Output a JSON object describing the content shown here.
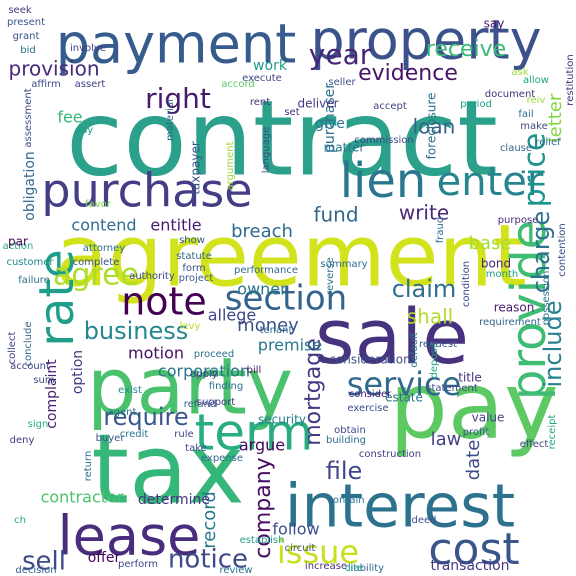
{
  "words": [
    {
      "text": "contract",
      "color": "#2ba08a"
    },
    {
      "text": "agreement",
      "color": "#d2e21b"
    },
    {
      "text": "tax",
      "color": "#35b779"
    },
    {
      "text": "pay",
      "color": "#5dc963"
    },
    {
      "text": "party",
      "color": "#4ac16d"
    },
    {
      "text": "sale",
      "color": "#46327e"
    },
    {
      "text": "interest",
      "color": "#2c728e"
    },
    {
      "text": "payment",
      "color": "#365c8d"
    },
    {
      "text": "property",
      "color": "#3b528b"
    },
    {
      "text": "purchase",
      "color": "#433e85"
    },
    {
      "text": "lease",
      "color": "#472d7b"
    },
    {
      "text": "term",
      "color": "#27ad81"
    },
    {
      "text": "lien",
      "color": "#2a768e"
    },
    {
      "text": "enter",
      "color": "#25848e"
    },
    {
      "text": "provide",
      "color": "#3fbc73"
    },
    {
      "text": "cost",
      "color": "#39568c"
    },
    {
      "text": "rate",
      "color": "#1f9e89"
    },
    {
      "text": "note",
      "color": "#440154"
    },
    {
      "text": "section",
      "color": "#33638d"
    },
    {
      "text": "service",
      "color": "#31688e"
    },
    {
      "text": "issue",
      "color": "#c8e020"
    },
    {
      "text": "agree",
      "color": "#addc30"
    },
    {
      "text": "right",
      "color": "#481a6c"
    },
    {
      "text": "year",
      "color": "#482576"
    },
    {
      "text": "price",
      "color": "#1f948c"
    },
    {
      "text": "sell",
      "color": "#3e4989"
    },
    {
      "text": "notice",
      "color": "#3e4a89"
    },
    {
      "text": "business",
      "color": "#24878e"
    },
    {
      "text": "require",
      "color": "#3a548c"
    },
    {
      "text": "claim",
      "color": "#2e6f8e"
    },
    {
      "text": "include",
      "color": "#26828e"
    },
    {
      "text": "charge",
      "color": "#2d718e"
    },
    {
      "text": "file",
      "color": "#404688"
    },
    {
      "text": "mortgage",
      "color": "#443a83"
    },
    {
      "text": "company",
      "color": "#470d60"
    },
    {
      "text": "evidence",
      "color": "#481467"
    },
    {
      "text": "receive",
      "color": "#3aba76"
    },
    {
      "text": "provision",
      "color": "#472a7a"
    },
    {
      "text": "write",
      "color": "#482878"
    },
    {
      "text": "fund",
      "color": "#31678e"
    },
    {
      "text": "shall",
      "color": "#b2dd2d"
    },
    {
      "text": "loan",
      "color": "#34618d"
    },
    {
      "text": "money",
      "color": "#3b518b"
    },
    {
      "text": "record",
      "color": "#29798e"
    },
    {
      "text": "letter",
      "color": "#86d549"
    },
    {
      "text": "breach",
      "color": "#30698e"
    },
    {
      "text": "law",
      "color": "#424086"
    },
    {
      "text": "date",
      "color": "#3d4d8a"
    },
    {
      "text": "base",
      "color": "#a8db34"
    },
    {
      "text": "fee",
      "color": "#37b878"
    },
    {
      "text": "entitle",
      "color": "#481b6d"
    },
    {
      "text": "contend",
      "color": "#2e6e8e"
    },
    {
      "text": "premise",
      "color": "#2a778e"
    },
    {
      "text": "corporation",
      "color": "#2b758e"
    },
    {
      "text": "argue",
      "color": "#46085c"
    },
    {
      "text": "determine",
      "color": "#453581"
    },
    {
      "text": "contractor",
      "color": "#4cc26c"
    },
    {
      "text": "offer",
      "color": "#450559"
    },
    {
      "text": "follow",
      "color": "#3c4f8a"
    },
    {
      "text": "motion",
      "color": "#471063"
    },
    {
      "text": "allege",
      "color": "#3f4788"
    },
    {
      "text": "owner",
      "color": "#2a788e"
    },
    {
      "text": "option",
      "color": "#44397f"
    },
    {
      "text": "obligation",
      "color": "#30698e"
    },
    {
      "text": "complaint",
      "color": "#482273"
    },
    {
      "text": "transaction",
      "color": "#453882"
    },
    {
      "text": "work",
      "color": "#1e9c89"
    },
    {
      "text": "purchaser",
      "color": "#2c718e"
    },
    {
      "text": "give",
      "color": "#2a768e"
    },
    {
      "text": "say",
      "color": "#481e70"
    },
    {
      "text": "seek",
      "color": "#453781"
    },
    {
      "text": "present",
      "color": "#39568c"
    },
    {
      "text": "grant",
      "color": "#3b528b"
    },
    {
      "text": "bid",
      "color": "#2e6f8e"
    },
    {
      "text": "involve",
      "color": "#414487"
    },
    {
      "text": "affirm",
      "color": "#3d4e8a"
    },
    {
      "text": "assert",
      "color": "#424086"
    },
    {
      "text": "execute",
      "color": "#404588"
    },
    {
      "text": "rent",
      "color": "#472f7d"
    },
    {
      "text": "seller",
      "color": "#3c4f8a"
    },
    {
      "text": "deliver",
      "color": "#453882"
    },
    {
      "text": "document",
      "color": "#46307e"
    },
    {
      "text": "allow",
      "color": "#22a785"
    },
    {
      "text": "accept",
      "color": "#424186"
    },
    {
      "text": "period",
      "color": "#1fa088"
    },
    {
      "text": "set",
      "color": "#472d7b"
    },
    {
      "text": "matter",
      "color": "#2b758e"
    },
    {
      "text": "foreclosure",
      "color": "#2d708e"
    },
    {
      "text": "assessment",
      "color": "#3f4889"
    },
    {
      "text": "day",
      "color": "#1f9f88"
    },
    {
      "text": "taxpayer",
      "color": "#39568c"
    },
    {
      "text": "language",
      "color": "#3e4c8a"
    },
    {
      "text": "commission",
      "color": "#404588"
    },
    {
      "text": "condition",
      "color": "#3e4989"
    },
    {
      "text": "purpose",
      "color": "#472c7a"
    },
    {
      "text": "customer",
      "color": "#23898e"
    },
    {
      "text": "failure",
      "color": "#2e6d8e"
    },
    {
      "text": "action",
      "color": "#24aa83"
    },
    {
      "text": "par",
      "color": "#440154"
    },
    {
      "text": "performance",
      "color": "#31688e"
    },
    {
      "text": "summary",
      "color": "#2f6c8e"
    },
    {
      "text": "fraud",
      "color": "#2e6e8e"
    },
    {
      "text": "bond",
      "color": "#482677"
    },
    {
      "text": "month",
      "color": "#1e9b8a"
    },
    {
      "text": "show",
      "color": "#38598c"
    },
    {
      "text": "statute",
      "color": "#33638d"
    },
    {
      "text": "levy",
      "color": "#b8de29"
    },
    {
      "text": "tenant",
      "color": "#2f6b8e"
    },
    {
      "text": "reason",
      "color": "#481d6f"
    },
    {
      "text": "reverse",
      "color": "#2c728e"
    },
    {
      "text": "consideration",
      "color": "#3d4e8a"
    },
    {
      "text": "estate",
      "color": "#2b748e"
    },
    {
      "text": "title",
      "color": "#472c7a"
    },
    {
      "text": "statement",
      "color": "#3e4989"
    },
    {
      "text": "support",
      "color": "#453882"
    },
    {
      "text": "consider",
      "color": "#482374"
    },
    {
      "text": "value",
      "color": "#404588"
    },
    {
      "text": "profit",
      "color": "#3b518b"
    },
    {
      "text": "apply",
      "color": "#3f4788"
    },
    {
      "text": "bill",
      "color": "#481769"
    },
    {
      "text": "exist",
      "color": "#228b8d"
    },
    {
      "text": "agent",
      "color": "#2a788e"
    },
    {
      "text": "buyer",
      "color": "#3a538b"
    },
    {
      "text": "credit",
      "color": "#2b758e"
    },
    {
      "text": "return",
      "color": "#2d708e"
    },
    {
      "text": "refund",
      "color": "#34608d"
    },
    {
      "text": "security",
      "color": "#287c8e"
    },
    {
      "text": "obtain",
      "color": "#3e4989"
    },
    {
      "text": "rule",
      "color": "#404688"
    },
    {
      "text": "take",
      "color": "#3d4d8a"
    },
    {
      "text": "sign",
      "color": "#26ad81"
    },
    {
      "text": "deny",
      "color": "#453781"
    },
    {
      "text": "effect",
      "color": "#414487"
    },
    {
      "text": "construction",
      "color": "#424186"
    },
    {
      "text": "contain",
      "color": "#2c728e"
    },
    {
      "text": "circuit",
      "color": "#39558c"
    },
    {
      "text": "deed",
      "color": "#3b528b"
    },
    {
      "text": "perform",
      "color": "#3f4788"
    },
    {
      "text": "increase",
      "color": "#46327e"
    },
    {
      "text": "establish",
      "color": "#1fa287"
    },
    {
      "text": "ch",
      "color": "#27ad81"
    },
    {
      "text": "attorney",
      "color": "#2e6e8e"
    },
    {
      "text": "authority",
      "color": "#3e4c8a"
    },
    {
      "text": "argument",
      "color": "#a0da39"
    },
    {
      "text": "material",
      "color": "#30698e"
    },
    {
      "text": "collect",
      "color": "#404588"
    },
    {
      "text": "conclude",
      "color": "#31688e"
    },
    {
      "text": "form",
      "color": "#3b528b"
    },
    {
      "text": "default",
      "color": "#29798e"
    },
    {
      "text": "deposit",
      "color": "#22a785"
    },
    {
      "text": "exercise",
      "color": "#3e4a89"
    },
    {
      "text": "building",
      "color": "#2d708e"
    },
    {
      "text": "receipt",
      "color": "#22a884"
    },
    {
      "text": "possession",
      "color": "#2a768e"
    },
    {
      "text": "contention",
      "color": "#3d4e8a"
    },
    {
      "text": "restitution",
      "color": "#46317e"
    },
    {
      "text": "complete",
      "color": "#3b528b"
    },
    {
      "text": "finding",
      "color": "#2e6e8e"
    },
    {
      "text": "account",
      "color": "#404688"
    },
    {
      "text": "request",
      "color": "#3a548c"
    },
    {
      "text": "requirement",
      "color": "#31688e"
    },
    {
      "text": "accord",
      "color": "#5ec962"
    },
    {
      "text": "ask",
      "color": "#9fda3a"
    },
    {
      "text": "make",
      "color": "#3e4a89"
    },
    {
      "text": "clause",
      "color": "#31688e"
    },
    {
      "text": "relief",
      "color": "#2e6f8e"
    },
    {
      "text": "fail",
      "color": "#2e6e8e"
    },
    {
      "text": "reiv",
      "color": "#9fda3a"
    },
    {
      "text": "favor",
      "color": "#7ad151"
    },
    {
      "text": "expense",
      "color": "#31688e"
    },
    {
      "text": "proceed",
      "color": "#2c728e"
    },
    {
      "text": "sum",
      "color": "#3f4788"
    },
    {
      "text": "project",
      "color": "#39568c"
    },
    {
      "text": "decision",
      "color": "#34608d"
    },
    {
      "text": "review",
      "color": "#2c728e"
    },
    {
      "text": "liability",
      "color": "#31688e"
    },
    {
      "text": "cite",
      "color": "#1f9e89"
    }
  ]
}
